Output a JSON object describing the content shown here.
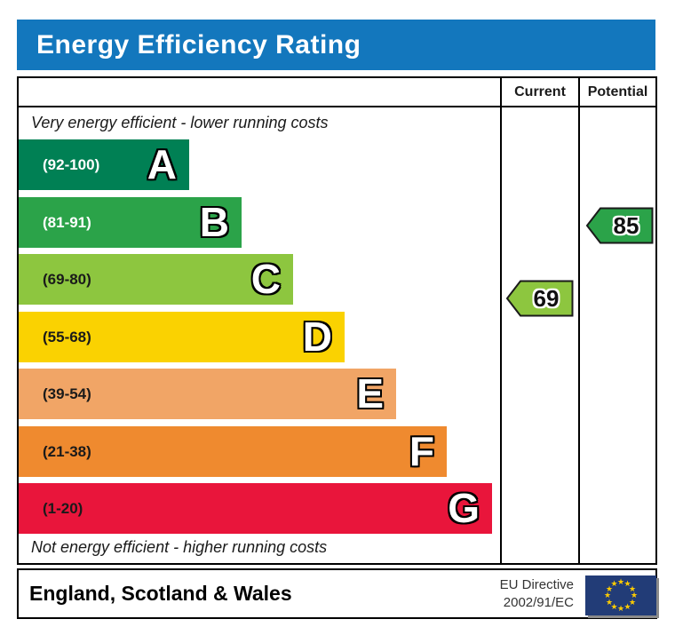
{
  "title": "Energy Efficiency Rating",
  "columns": {
    "current_label": "Current",
    "potential_label": "Potential"
  },
  "captions": {
    "top": "Very energy efficient - lower running costs",
    "bottom": "Not energy efficient - higher running costs"
  },
  "chart_data": {
    "type": "bar",
    "title": "Energy Efficiency Rating",
    "xlabel": "",
    "ylabel": "",
    "bands": [
      {
        "letter": "A",
        "label": "(92-100)",
        "range": [
          92,
          100
        ],
        "color": "#008054",
        "label_color": "#ffffff"
      },
      {
        "letter": "B",
        "label": "(81-91)",
        "range": [
          81,
          91
        ],
        "color": "#2ba349",
        "label_color": "#ffffff"
      },
      {
        "letter": "C",
        "label": "(69-80)",
        "range": [
          69,
          80
        ],
        "color": "#8dc63f",
        "label_color": "#1a1a1a"
      },
      {
        "letter": "D",
        "label": "(55-68)",
        "range": [
          55,
          68
        ],
        "color": "#fad201",
        "label_color": "#1a1a1a"
      },
      {
        "letter": "E",
        "label": "(39-54)",
        "range": [
          39,
          54
        ],
        "color": "#f1a566",
        "label_color": "#1a1a1a"
      },
      {
        "letter": "F",
        "label": "(21-38)",
        "range": [
          21,
          38
        ],
        "color": "#ef8a2f",
        "label_color": "#1a1a1a"
      },
      {
        "letter": "G",
        "label": "(1-20)",
        "range": [
          1,
          20
        ],
        "color": "#e9153b",
        "label_color": "#1a1a1a"
      }
    ],
    "current": {
      "value": "69",
      "band": "C",
      "color": "#8dc63f"
    },
    "potential": {
      "value": "85",
      "band": "B",
      "color": "#2ba349"
    }
  },
  "footer": {
    "region": "England, Scotland & Wales",
    "directive_line1": "EU Directive",
    "directive_line2": "2002/91/EC",
    "eu_flag_color": "#223c77",
    "eu_star_color": "#ffcc00"
  },
  "colors": {
    "title_bar": "#1377bd",
    "border": "#000000"
  }
}
